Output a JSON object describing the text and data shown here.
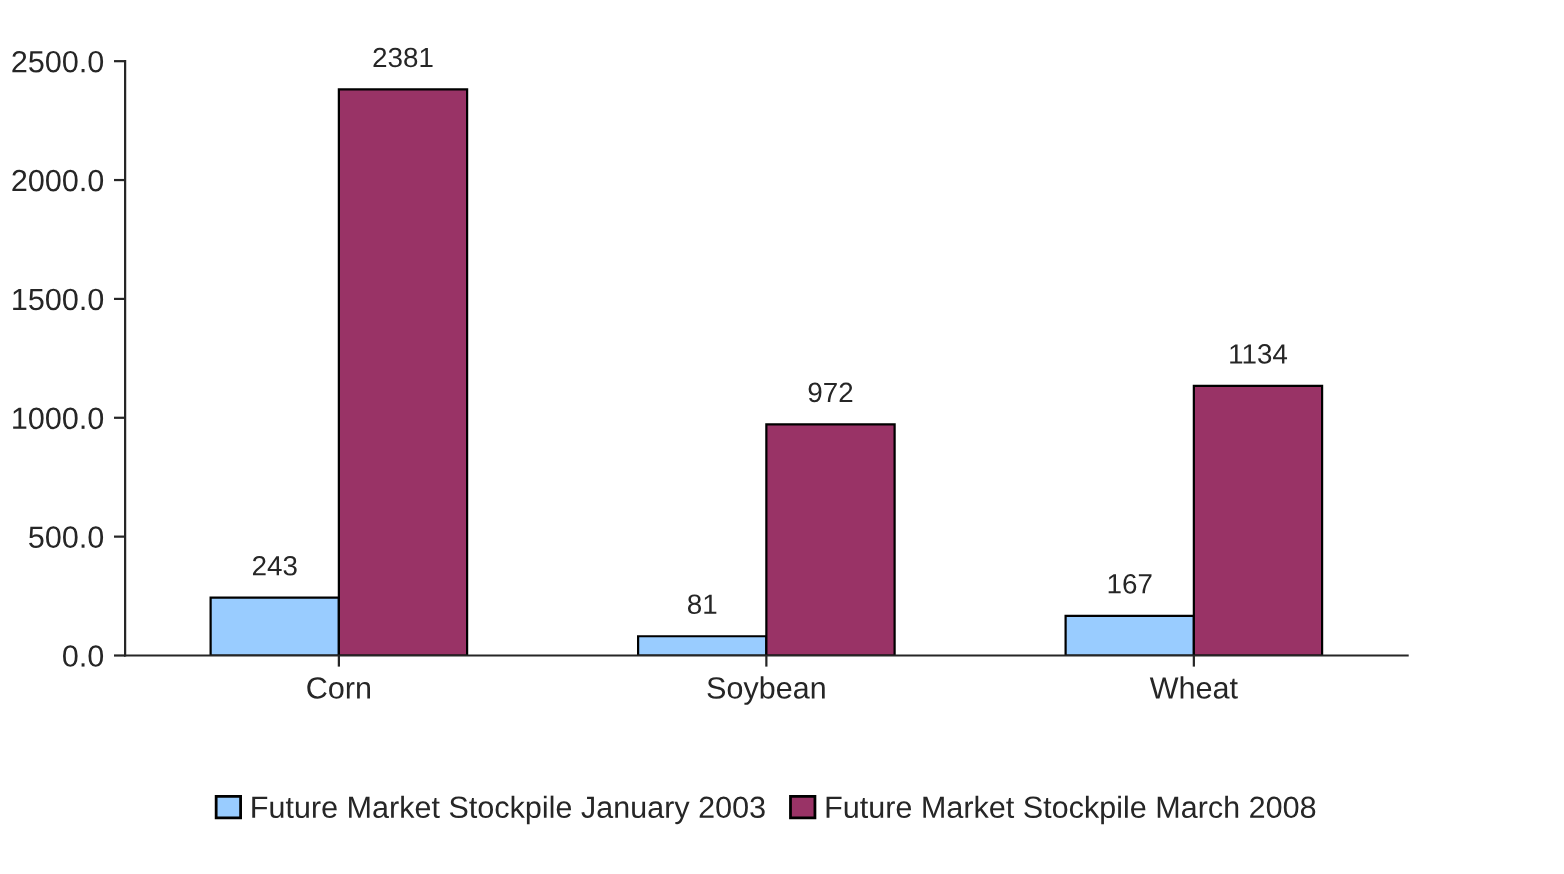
{
  "chart_data": {
    "type": "bar",
    "categories": [
      "Corn",
      "Soybean",
      "Wheat"
    ],
    "series": [
      {
        "name": "Future Market Stockpile January 2003",
        "color": "#99ccff",
        "values": [
          243,
          81,
          167
        ]
      },
      {
        "name": "Future Market Stockpile March 2008",
        "color": "#993366",
        "values": [
          2381,
          972,
          1134
        ]
      }
    ],
    "ylim": [
      0,
      2500
    ],
    "yticks": [
      {
        "value": 0,
        "label": "0.0"
      },
      {
        "value": 500,
        "label": "500.0"
      },
      {
        "value": 1000,
        "label": "1000.0"
      },
      {
        "value": 1500,
        "label": "1500.0"
      },
      {
        "value": 2000,
        "label": "2000.0"
      },
      {
        "value": 2500,
        "label": "2500.0"
      }
    ],
    "data_labels": true,
    "grid": false,
    "legend": "bottom"
  }
}
